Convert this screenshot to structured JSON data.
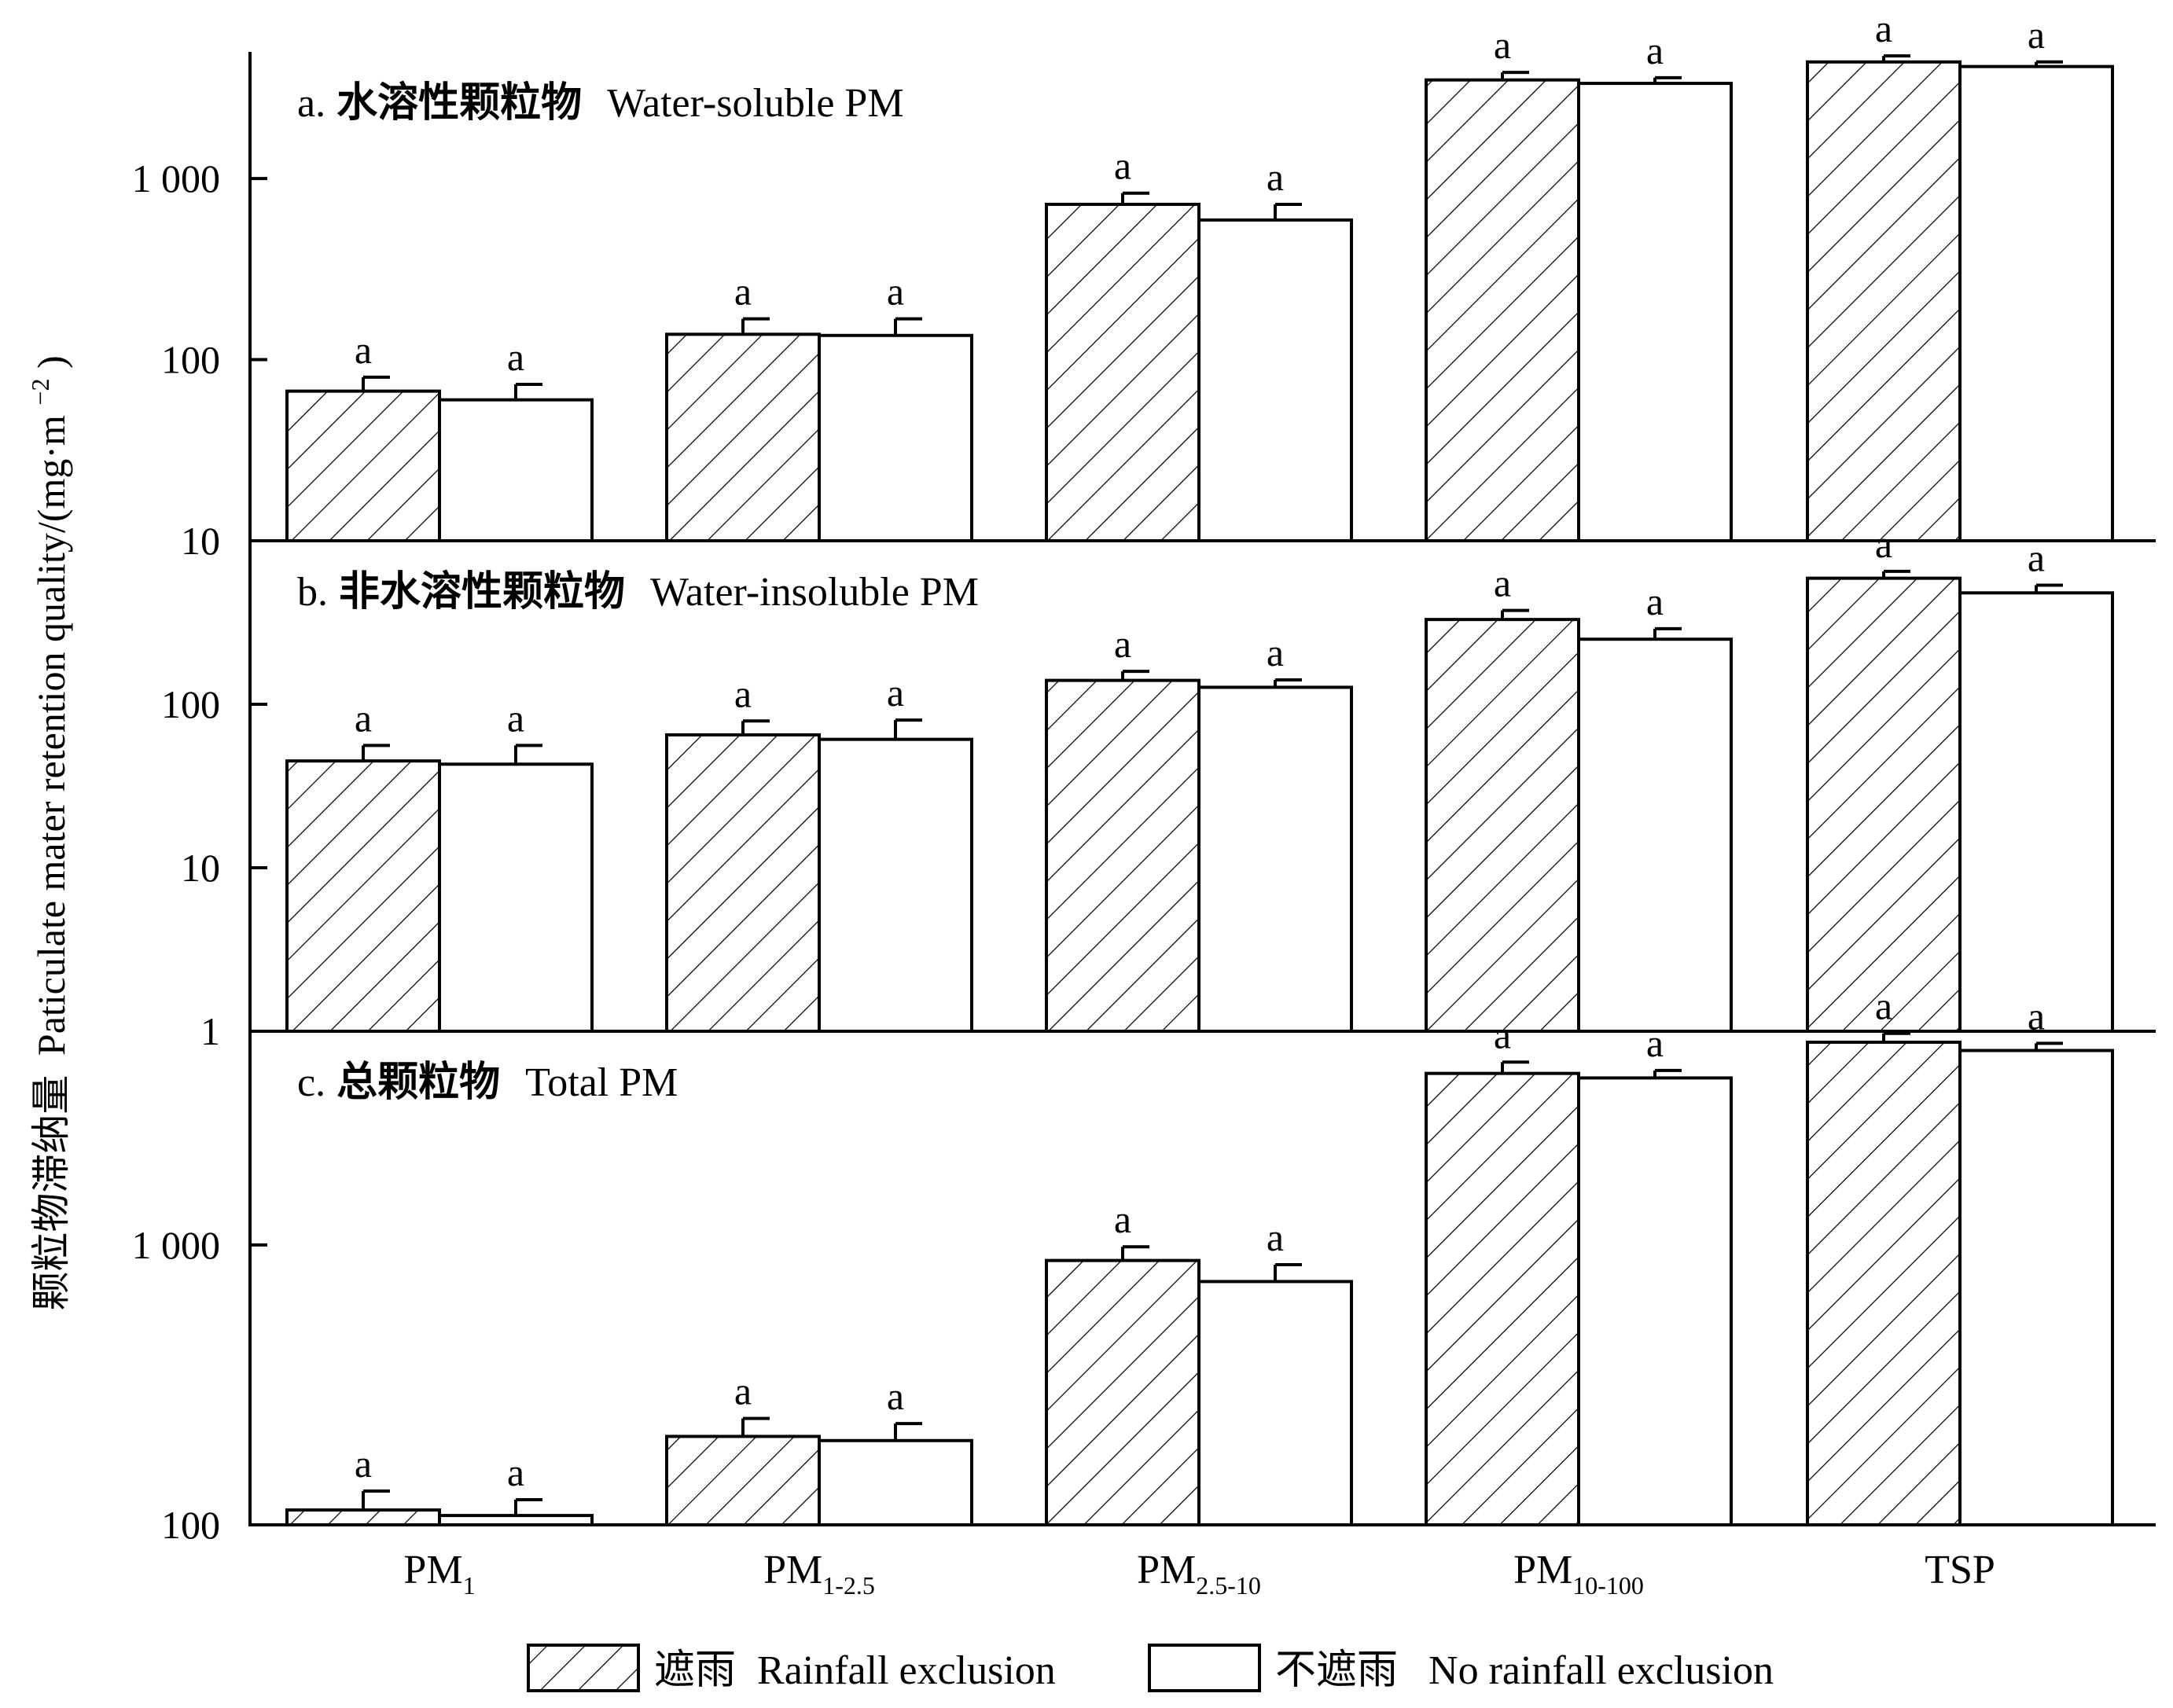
{
  "chart_data": {
    "type": "bar",
    "ylabel_cn": "颗粒物滞纳量",
    "ylabel_en": "Paticulate mater retention quality/(mg·m",
    "ylabel_unit_sup": "−2",
    "ylabel_close": ")",
    "categories": [
      {
        "main": "PM",
        "sub": "1"
      },
      {
        "main": "PM",
        "sub": "1-2.5"
      },
      {
        "main": "PM",
        "sub": "2.5-10"
      },
      {
        "main": "PM",
        "sub": "10-100"
      },
      {
        "main": "TSP",
        "sub": ""
      }
    ],
    "legend": [
      {
        "cn": "遮雨",
        "en": "Rainfall exclusion",
        "pattern": "hatch"
      },
      {
        "cn": "不遮雨",
        "en": "No rainfall exclusion",
        "pattern": "open"
      }
    ],
    "significance_letter": "a",
    "scale": "log",
    "panels": [
      {
        "label": "a.",
        "title_cn": "水溶性颗粒物",
        "title_en": "Water-soluble PM",
        "ylim": [
          10,
          5000
        ],
        "ticks": [
          {
            "value": 10,
            "label": "10"
          },
          {
            "value": 100,
            "label": "100"
          },
          {
            "value": 1000,
            "label": "1 000"
          }
        ],
        "series": [
          {
            "name": "遮雨 Rainfall exclusion",
            "values": [
              67,
              138,
              720,
              3500,
              4400
            ],
            "errors": [
              80,
              168,
              830,
              3850,
              4750
            ]
          },
          {
            "name": "不遮雨 No rainfall exclusion",
            "values": [
              60,
              136,
              590,
              3350,
              4150
            ],
            "errors": [
              73,
              168,
              720,
              3600,
              4400
            ]
          }
        ]
      },
      {
        "label": "b.",
        "title_cn": "非水溶性颗粒物",
        "title_en": "Water-insoluble PM",
        "ylim": [
          1,
          1000
        ],
        "ticks": [
          {
            "value": 1,
            "label": "1"
          },
          {
            "value": 10,
            "label": "10"
          },
          {
            "value": 100,
            "label": "100"
          }
        ],
        "series": [
          {
            "name": "遮雨 Rainfall exclusion",
            "values": [
              45,
              65,
              140,
              330,
              590
            ],
            "errors": [
              56,
              79,
              159,
              375,
              650
            ]
          },
          {
            "name": "不遮雨 No rainfall exclusion",
            "values": [
              43,
              61,
              127,
              250,
              480
            ],
            "errors": [
              56,
              80,
              141,
              290,
              535
            ]
          }
        ]
      },
      {
        "label": "c.",
        "title_cn": "总颗粒物",
        "title_en": "Total PM",
        "ylim": [
          100,
          5800
        ],
        "ticks": [
          {
            "value": 100,
            "label": "100"
          },
          {
            "value": 1000,
            "label": "1 000"
          }
        ],
        "series": [
          {
            "name": "遮雨 Rainfall exclusion",
            "values": [
              113,
              207,
              880,
              4100,
              5300
            ],
            "errors": [
              132,
              240,
              985,
              4500,
              5700
            ]
          },
          {
            "name": "不遮雨 No rainfall exclusion",
            "values": [
              108,
              200,
              740,
              3950,
              4950
            ],
            "errors": [
              123,
              230,
              850,
              4200,
              5250
            ]
          }
        ]
      }
    ]
  }
}
